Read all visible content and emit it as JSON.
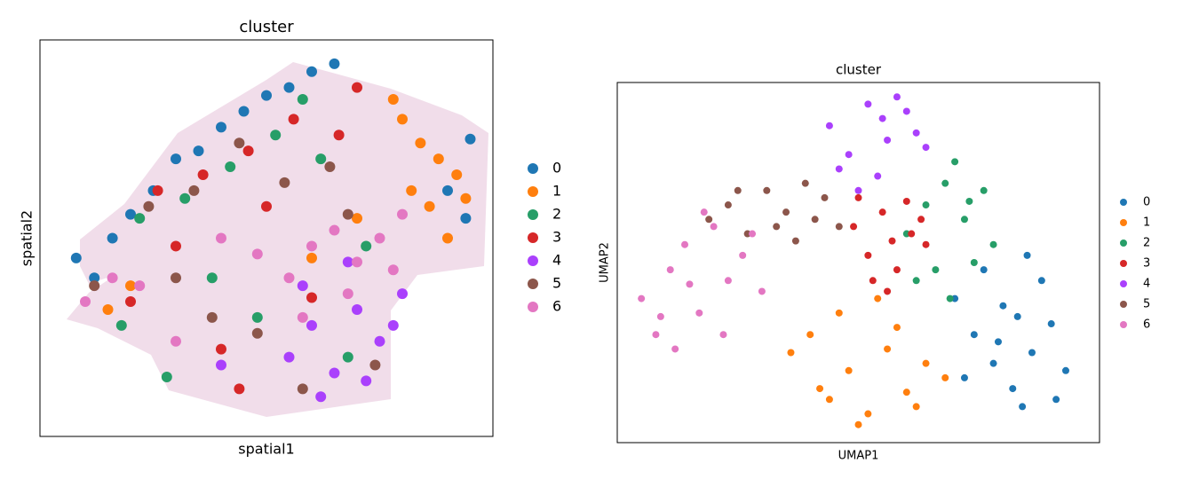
{
  "chart_data": [
    {
      "type": "scatter",
      "title": "cluster",
      "xlabel": "spatial1",
      "ylabel": "spatial2",
      "xlim": [
        0,
        100
      ],
      "ylim": [
        0,
        100
      ],
      "legend": "right",
      "series": [
        {
          "name": "0",
          "color": "#1f77b4",
          "x": [
            8,
            12,
            16,
            20,
            30,
            40,
            50,
            60,
            25,
            35,
            45,
            55,
            65,
            95,
            90,
            94
          ],
          "values": [
            45,
            40,
            50,
            56,
            70,
            78,
            86,
            92,
            62,
            72,
            82,
            88,
            94,
            75,
            62,
            55
          ]
        },
        {
          "name": "1",
          "color": "#ff7f0e",
          "x": [
            80,
            84,
            88,
            92,
            86,
            90,
            82,
            70,
            60,
            15,
            20,
            78,
            94
          ],
          "values": [
            80,
            74,
            70,
            66,
            58,
            50,
            62,
            55,
            45,
            32,
            38,
            85,
            60
          ]
        },
        {
          "name": "2",
          "color": "#279e68",
          "x": [
            22,
            32,
            42,
            52,
            62,
            72,
            28,
            48,
            68,
            38,
            58,
            18
          ],
          "values": [
            55,
            60,
            68,
            76,
            70,
            48,
            15,
            30,
            20,
            40,
            85,
            28
          ]
        },
        {
          "name": "3",
          "color": "#d62728",
          "x": [
            26,
            36,
            46,
            56,
            66,
            30,
            50,
            40,
            60,
            70,
            20,
            44
          ],
          "values": [
            62,
            66,
            72,
            80,
            76,
            48,
            58,
            22,
            35,
            88,
            34,
            12
          ]
        },
        {
          "name": "4",
          "color": "#aa40fc",
          "x": [
            55,
            60,
            65,
            70,
            75,
            80,
            58,
            68,
            72,
            78,
            62,
            40
          ],
          "values": [
            20,
            28,
            16,
            32,
            24,
            36,
            38,
            44,
            14,
            28,
            10,
            18
          ]
        },
        {
          "name": "5",
          "color": "#8c564b",
          "x": [
            24,
            34,
            44,
            54,
            64,
            74,
            38,
            48,
            58,
            12,
            68,
            30
          ],
          "values": [
            58,
            62,
            74,
            64,
            68,
            18,
            30,
            26,
            12,
            38,
            56,
            40
          ]
        },
        {
          "name": "6",
          "color": "#e377c2",
          "x": [
            55,
            60,
            65,
            70,
            75,
            80,
            58,
            68,
            78,
            10,
            16,
            22,
            40,
            48,
            30
          ],
          "values": [
            40,
            48,
            52,
            44,
            50,
            56,
            30,
            36,
            42,
            34,
            40,
            38,
            50,
            46,
            24
          ]
        }
      ]
    },
    {
      "type": "scatter",
      "title": "cluster",
      "xlabel": "UMAP1",
      "ylabel": "UMAP2",
      "xlim": [
        0,
        100
      ],
      "ylim": [
        0,
        100
      ],
      "legend": "right",
      "series": [
        {
          "name": "0",
          "color": "#1f77b4",
          "x": [
            70,
            74,
            78,
            82,
            86,
            90,
            93,
            76,
            80,
            84,
            88,
            72,
            79,
            85,
            91,
            83
          ],
          "values": [
            40,
            30,
            22,
            15,
            25,
            33,
            20,
            48,
            38,
            10,
            45,
            18,
            28,
            52,
            12,
            35
          ]
        },
        {
          "name": "1",
          "color": "#ff7f0e",
          "x": [
            36,
            40,
            44,
            48,
            52,
            56,
            60,
            64,
            68,
            46,
            54,
            50,
            58,
            42,
            62
          ],
          "values": [
            25,
            30,
            12,
            20,
            8,
            26,
            14,
            22,
            18,
            36,
            40,
            5,
            32,
            15,
            10
          ]
        },
        {
          "name": "2",
          "color": "#279e68",
          "x": [
            60,
            64,
            68,
            72,
            76,
            78,
            66,
            70,
            74,
            62,
            69,
            73
          ],
          "values": [
            58,
            66,
            72,
            62,
            70,
            55,
            48,
            78,
            50,
            45,
            40,
            67
          ]
        },
        {
          "name": "3",
          "color": "#d62728",
          "x": [
            49,
            52,
            55,
            58,
            61,
            64,
            56,
            60,
            53,
            63,
            57,
            50
          ],
          "values": [
            60,
            52,
            64,
            48,
            58,
            55,
            42,
            67,
            45,
            62,
            56,
            68
          ]
        },
        {
          "name": "4",
          "color": "#aa40fc",
          "x": [
            44,
            48,
            52,
            56,
            60,
            64,
            50,
            54,
            58,
            46,
            62,
            55
          ],
          "values": [
            88,
            80,
            94,
            84,
            92,
            82,
            70,
            74,
            96,
            76,
            86,
            90
          ]
        },
        {
          "name": "5",
          "color": "#8c564b",
          "x": [
            19,
            23,
            27,
            31,
            35,
            39,
            43,
            46,
            25,
            33,
            41,
            37
          ],
          "values": [
            62,
            66,
            58,
            70,
            64,
            72,
            68,
            60,
            70,
            60,
            62,
            56
          ]
        },
        {
          "name": "6",
          "color": "#e377c2",
          "x": [
            5,
            8,
            11,
            14,
            17,
            20,
            23,
            26,
            30,
            12,
            18,
            9,
            22,
            15,
            28
          ],
          "values": [
            40,
            30,
            48,
            55,
            36,
            60,
            45,
            52,
            42,
            26,
            64,
            35,
            30,
            44,
            58
          ]
        }
      ]
    }
  ]
}
